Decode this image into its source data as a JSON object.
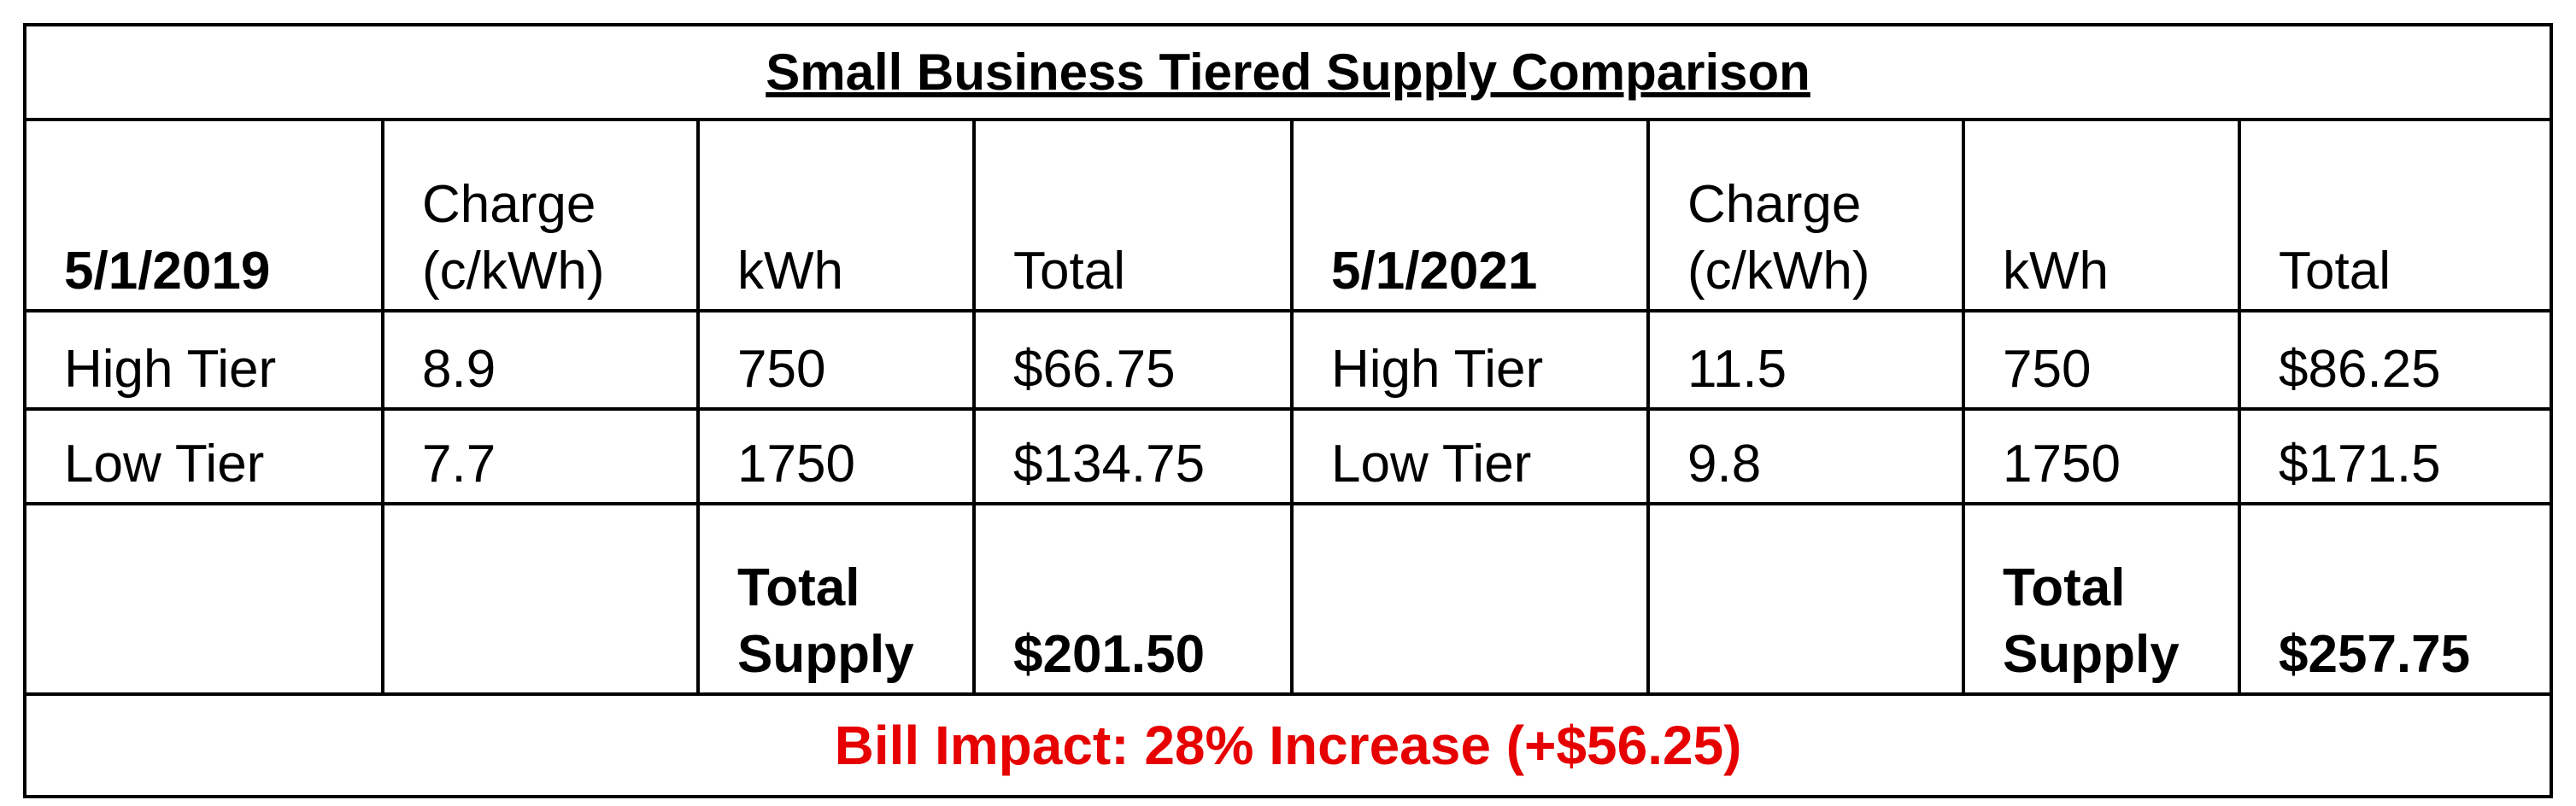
{
  "title": "Small Business Tiered Supply Comparison",
  "header": [
    "5/1/2019",
    "Charge (c/kWh)",
    "kWh",
    "Total",
    "5/1/2021",
    "Charge (c/kWh)",
    "kWh",
    "Total"
  ],
  "rows": [
    [
      "High Tier",
      "8.9",
      "750",
      "$66.75",
      "High Tier",
      "11.5",
      "750",
      "$86.25"
    ],
    [
      "Low Tier",
      "7.7",
      "1750",
      "$134.75",
      "Low Tier",
      "9.8",
      "1750",
      "$171.5"
    ]
  ],
  "totals": {
    "left": {
      "label": "Total Supply",
      "value": "$201.50"
    },
    "right": {
      "label": "Total Supply",
      "value": "$257.75"
    }
  },
  "footer": "Bill Impact: 28% Increase (+$56.25)"
}
